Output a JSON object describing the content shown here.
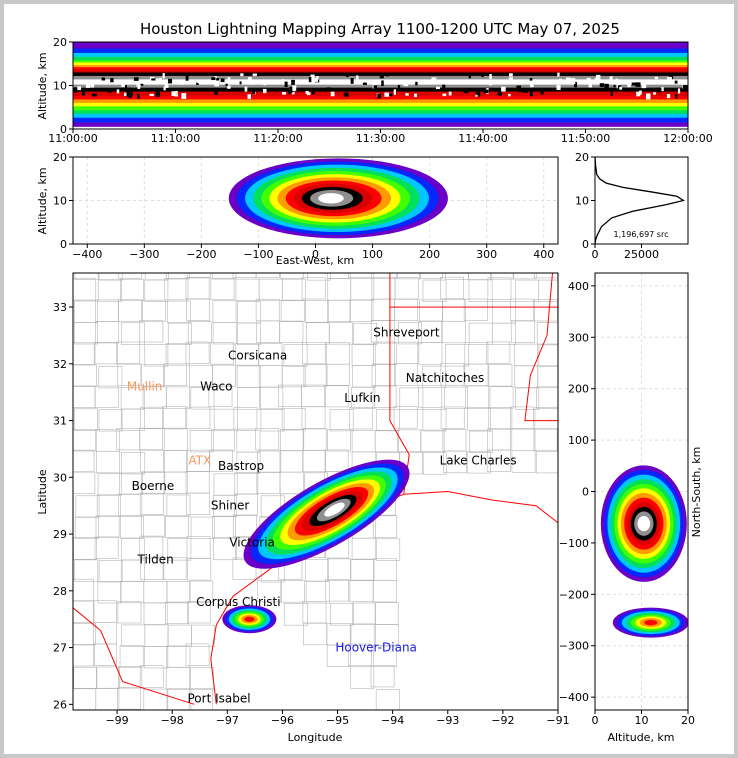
{
  "chart_data": [
    {
      "type": "heatmap",
      "panel": "time-altitude",
      "title": "Houston Lightning Mapping Array 1100-1200 UTC May 07, 2025",
      "ylabel": "Altitude, km",
      "xlabel": "",
      "x_tick_labels": [
        "11:00:00",
        "11:10:00",
        "11:20:00",
        "11:30:00",
        "11:40:00",
        "11:50:00",
        "12:00:00"
      ],
      "y_ticks": [
        0,
        10,
        20
      ],
      "ylim": [
        0,
        20
      ],
      "core_altitude_km": 10.5
    },
    {
      "type": "heatmap",
      "panel": "east-west-altitude",
      "xlabel": "East-West, km",
      "ylabel": "Altitude, km",
      "x_ticks": [
        -400,
        -300,
        -200,
        -100,
        0,
        100,
        200,
        300,
        400
      ],
      "xlim": [
        -425,
        425
      ],
      "y_ticks": [
        0,
        10,
        20
      ],
      "ylim": [
        0,
        20
      ],
      "storm_ew_range_km": [
        -170,
        200
      ],
      "storm_core_ew_km": 40
    },
    {
      "type": "line",
      "panel": "altitude-histogram",
      "xlabel": "",
      "ylabel": "",
      "x_ticks": [
        0,
        25000
      ],
      "xlim": [
        0,
        50000
      ],
      "y_ticks": [
        0,
        10,
        20
      ],
      "ylim": [
        0,
        20
      ],
      "annotation": "1,196,697 src",
      "x": [
        0,
        300,
        1200,
        3500,
        9000,
        20000,
        38000,
        47500,
        44000,
        30000,
        15000,
        6000,
        2500,
        900,
        300,
        0
      ],
      "y": [
        0,
        1,
        2,
        4,
        6,
        7.5,
        9,
        10,
        11,
        12,
        13,
        14,
        15,
        16,
        18,
        20
      ]
    },
    {
      "type": "heatmap",
      "panel": "plan-view",
      "xlabel": "Longitude",
      "ylabel": "Latitude",
      "x_ticks": [
        -99,
        -98,
        -97,
        -96,
        -95,
        -94,
        -93,
        -92,
        -91
      ],
      "xlim": [
        -99.8,
        -91
      ],
      "y_ticks": [
        26,
        27,
        28,
        29,
        30,
        31,
        32,
        33
      ],
      "ylim": [
        25.9,
        33.6
      ],
      "storm_center": {
        "lon": -95.2,
        "lat": 29.35
      },
      "secondary_cell": {
        "lon": -96.6,
        "lat": 27.5
      },
      "places": [
        {
          "name": "Shreveport",
          "lon": -93.75,
          "lat": 32.55,
          "color": "#000000"
        },
        {
          "name": "Corsicana",
          "lon": -96.45,
          "lat": 32.15,
          "color": "#000000"
        },
        {
          "name": "Natchitoches",
          "lon": -93.05,
          "lat": 31.75,
          "color": "#000000"
        },
        {
          "name": "Mullin",
          "lon": -98.5,
          "lat": 31.6,
          "color": "#f59a5a"
        },
        {
          "name": "Waco",
          "lon": -97.2,
          "lat": 31.6,
          "color": "#000000"
        },
        {
          "name": "Lufkin",
          "lon": -94.55,
          "lat": 31.4,
          "color": "#000000"
        },
        {
          "name": "ATX",
          "lon": -97.5,
          "lat": 30.3,
          "color": "#f59a5a"
        },
        {
          "name": "Bastrop",
          "lon": -96.75,
          "lat": 30.2,
          "color": "#000000"
        },
        {
          "name": "Lake Charles",
          "lon": -92.45,
          "lat": 30.3,
          "color": "#000000"
        },
        {
          "name": "Boerne",
          "lon": -98.35,
          "lat": 29.85,
          "color": "#000000"
        },
        {
          "name": "Shiner",
          "lon": -96.95,
          "lat": 29.5,
          "color": "#000000"
        },
        {
          "name": "Victoria",
          "lon": -96.55,
          "lat": 28.85,
          "color": "#000000"
        },
        {
          "name": "Tilden",
          "lon": -98.3,
          "lat": 28.55,
          "color": "#000000"
        },
        {
          "name": "Corpus Christi",
          "lon": -96.8,
          "lat": 27.8,
          "color": "#000000"
        },
        {
          "name": "Hoover-Diana",
          "lon": -94.3,
          "lat": 27.0,
          "color": "#1a1ae6"
        },
        {
          "name": "Port Isabel",
          "lon": -97.15,
          "lat": 26.1,
          "color": "#000000"
        }
      ]
    },
    {
      "type": "heatmap",
      "panel": "altitude-north-south",
      "xlabel": "Altitude, km",
      "ylabel": "North-South, km",
      "x_ticks": [
        0,
        10,
        20
      ],
      "xlim": [
        0,
        20
      ],
      "y_ticks": [
        -400,
        -300,
        -200,
        -100,
        0,
        100,
        200,
        300,
        400
      ],
      "ylim": [
        -425,
        425
      ],
      "storm_ns_range_km": [
        -170,
        45
      ],
      "secondary_ns_km": -255
    }
  ],
  "colormap": [
    "#6a00c8",
    "#0028ff",
    "#00c8ff",
    "#00e05a",
    "#40ff00",
    "#ffff00",
    "#ff9a00",
    "#ff0000",
    "#d80000",
    "#000000",
    "#909090",
    "#ffffff"
  ],
  "colors": {
    "border_state": "#ff0000",
    "border_county": "#b4b4b4",
    "coast": "#ff0000",
    "frame": "#c8c8c8"
  }
}
